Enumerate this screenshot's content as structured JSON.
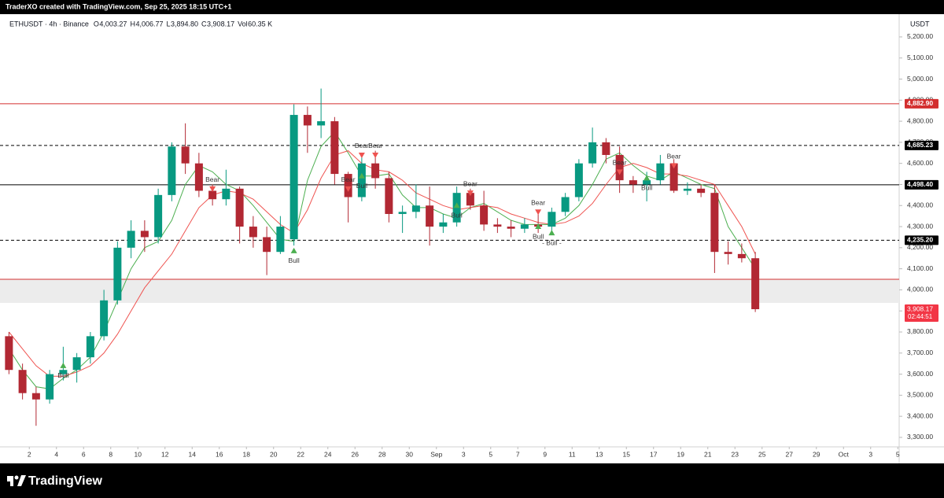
{
  "header": {
    "credit": "TraderXO created with TradingView.com, Sep 25, 2025 18:15 UTC+1",
    "brand": "TradingView"
  },
  "chart_data": {
    "type": "candlestick",
    "symbol": "ETHUSDT · 4h · Binance",
    "ohlc_legend": [
      {
        "key": "O",
        "value": "4,003.27"
      },
      {
        "key": "H",
        "value": "4,006.77"
      },
      {
        "key": "L",
        "value": "3,894.80"
      },
      {
        "key": "C",
        "value": "3,908.17"
      },
      {
        "key": "Vol",
        "value": "60.35 K"
      }
    ],
    "currency": "USDT",
    "x": [
      "Aug 1",
      "Aug 2",
      "Aug 3",
      "Aug 4",
      "Aug 5",
      "Aug 6",
      "Aug 7",
      "Aug 8",
      "Aug 9",
      "Aug 10",
      "Aug 11",
      "Aug 12",
      "Aug 13",
      "Aug 14",
      "Aug 15",
      "Aug 16",
      "Aug 17",
      "Aug 18",
      "Aug 19",
      "Aug 20",
      "Aug 21",
      "Aug 22",
      "Aug 23",
      "Aug 24",
      "Aug 25",
      "Aug 26",
      "Aug 27",
      "Aug 28",
      "Aug 29",
      "Aug 30",
      "Aug 31",
      "Sep 1",
      "Sep 2",
      "Sep 3",
      "Sep 4",
      "Sep 5",
      "Sep 6",
      "Sep 7",
      "Sep 8",
      "Sep 9",
      "Sep 10",
      "Sep 11",
      "Sep 12",
      "Sep 13",
      "Sep 14",
      "Sep 15",
      "Sep 16",
      "Sep 17",
      "Sep 18",
      "Sep 19",
      "Sep 20",
      "Sep 21",
      "Sep 22",
      "Sep 23",
      "Sep 24",
      "Sep 25"
    ],
    "open": [
      3780,
      3620,
      3510,
      3480,
      3600,
      3620,
      3680,
      3780,
      3950,
      4200,
      4280,
      4250,
      4450,
      4680,
      4600,
      4470,
      4430,
      4480,
      4300,
      4250,
      4180,
      4240,
      4830,
      4780,
      4800,
      4550,
      4440,
      4600,
      4530,
      4360,
      4370,
      4400,
      4300,
      4320,
      4460,
      4400,
      4310,
      4300,
      4290,
      4310,
      4300,
      4370,
      4440,
      4600,
      4700,
      4640,
      4520,
      4500,
      4520,
      4600,
      4470,
      4480,
      4460,
      4180,
      4170,
      4150
    ],
    "high": [
      3800,
      3650,
      3540,
      3620,
      3730,
      3700,
      3800,
      4000,
      4230,
      4330,
      4330,
      4480,
      4700,
      4790,
      4650,
      4500,
      4570,
      4490,
      4350,
      4300,
      4350,
      4880,
      4870,
      4955,
      4820,
      4560,
      4640,
      4660,
      4560,
      4400,
      4500,
      4490,
      4360,
      4490,
      4480,
      4470,
      4340,
      4330,
      4340,
      4380,
      4390,
      4460,
      4620,
      4770,
      4720,
      4680,
      4540,
      4560,
      4640,
      4620,
      4510,
      4500,
      4500,
      4230,
      4220,
      4180
    ],
    "low": [
      3600,
      3480,
      3355,
      3460,
      3570,
      3560,
      3650,
      3760,
      3930,
      4150,
      4180,
      4220,
      4420,
      4550,
      4440,
      4400,
      4400,
      4220,
      4200,
      4070,
      4170,
      4210,
      4650,
      4720,
      4500,
      4320,
      4420,
      4480,
      4320,
      4270,
      4340,
      4210,
      4270,
      4300,
      4380,
      4280,
      4270,
      4250,
      4270,
      4270,
      4270,
      4350,
      4420,
      4580,
      4600,
      4460,
      4460,
      4420,
      4500,
      4460,
      4450,
      4440,
      4080,
      4120,
      4130,
      3894.8
    ],
    "close": [
      3620,
      3510,
      3480,
      3600,
      3620,
      3680,
      3780,
      3950,
      4200,
      4280,
      4250,
      4450,
      4680,
      4600,
      4470,
      4430,
      4480,
      4300,
      4250,
      4180,
      4300,
      4830,
      4780,
      4800,
      4550,
      4440,
      4600,
      4530,
      4360,
      4370,
      4400,
      4300,
      4320,
      4460,
      4400,
      4310,
      4300,
      4290,
      4310,
      4300,
      4370,
      4440,
      4600,
      4700,
      4640,
      4520,
      4500,
      4520,
      4600,
      4470,
      4480,
      4460,
      4180,
      4170,
      4150,
      3908.17
    ],
    "up_color": "#089981",
    "down_color": "#b22833",
    "overlays": [
      {
        "color": "#4caf50",
        "values": [
          3720,
          3620,
          3540,
          3530,
          3580,
          3620,
          3680,
          3800,
          3950,
          4100,
          4200,
          4230,
          4330,
          4500,
          4590,
          4560,
          4500,
          4470,
          4400,
          4320,
          4240,
          4230,
          4520,
          4680,
          4750,
          4650,
          4540,
          4540,
          4550,
          4450,
          4390,
          4390,
          4360,
          4340,
          4390,
          4410,
          4370,
          4330,
          4310,
          4310,
          4310,
          4340,
          4400,
          4500,
          4620,
          4650,
          4590,
          4540,
          4520,
          4560,
          4530,
          4500,
          4480,
          4300,
          4200,
          4100
        ]
      },
      {
        "color": "#ef5350",
        "values": [
          3800,
          3720,
          3640,
          3590,
          3590,
          3610,
          3640,
          3700,
          3790,
          3900,
          4010,
          4090,
          4170,
          4280,
          4390,
          4450,
          4470,
          4460,
          4430,
          4370,
          4310,
          4270,
          4380,
          4530,
          4640,
          4660,
          4600,
          4570,
          4560,
          4520,
          4460,
          4430,
          4400,
          4380,
          4390,
          4400,
          4390,
          4360,
          4340,
          4320,
          4310,
          4320,
          4350,
          4410,
          4500,
          4580,
          4600,
          4580,
          4550,
          4550,
          4540,
          4520,
          4500,
          4400,
          4300,
          4170
        ]
      }
    ],
    "signals": [
      {
        "label": "Bull",
        "x": "Aug 5",
        "price": 3640,
        "color": "#4caf50"
      },
      {
        "label": "Bear",
        "x": "Aug 16",
        "price": 4480,
        "color": "#ef5350"
      },
      {
        "label": "Bull",
        "x": "Aug 22",
        "price": 4185,
        "color": "#4caf50"
      },
      {
        "label": "Bear",
        "x": "Aug 26",
        "price": 4480,
        "color": "#ef5350"
      },
      {
        "label": "Bear",
        "x": "Aug 27",
        "price": 4640,
        "color": "#ef5350"
      },
      {
        "label": "Bull",
        "x": "Aug 27",
        "price": 4540,
        "color": "#4caf50"
      },
      {
        "label": "Bear",
        "x": "Aug 28",
        "price": 4640,
        "color": "#ef5350"
      },
      {
        "label": "Bull",
        "x": "Sep 3",
        "price": 4400,
        "color": "#4caf50"
      },
      {
        "label": "Bear",
        "x": "Sep 4",
        "price": 4460,
        "color": "#ef5350"
      },
      {
        "label": "Bear",
        "x": "Sep 9",
        "price": 4370,
        "color": "#ef5350"
      },
      {
        "label": "Bull",
        "x": "Sep 9",
        "price": 4300,
        "color": "#4caf50"
      },
      {
        "label": "- Bull -",
        "x": "Sep 10",
        "price": 4270,
        "color": "#4caf50"
      },
      {
        "label": "Bear",
        "x": "Sep 15",
        "price": 4560,
        "color": "#ef5350"
      },
      {
        "label": "Bull",
        "x": "Sep 17",
        "price": 4530,
        "color": "#4caf50"
      },
      {
        "label": "Bear",
        "x": "Sep 19",
        "price": 4590,
        "color": "#ef5350"
      }
    ],
    "levels": [
      {
        "value": 4882.9,
        "label": "4,882.90",
        "color": "#d32f2f",
        "dashed": false
      },
      {
        "value": 4685.23,
        "label": "4,685.23",
        "color": "#000000",
        "dashed": true
      },
      {
        "value": 4498.4,
        "label": "4,498.40",
        "color": "#000000",
        "dashed": false
      },
      {
        "value": 4235.2,
        "label": "4,235.20",
        "color": "#000000",
        "dashed": true
      },
      {
        "value": 4050,
        "color": "#d32f2f",
        "dashed": false
      }
    ],
    "zone": {
      "range": [
        3938,
        4050
      ],
      "color": "#ececec"
    },
    "last_price": {
      "value": 3908.17,
      "label": "3,908.17",
      "countdown": "02:44:51",
      "color": "#f23645"
    },
    "ylim": [
      3255,
      5308
    ],
    "yticks": [
      {
        "value": 3300,
        "label": "3,300.00"
      },
      {
        "value": 3400,
        "label": "3,400.00"
      },
      {
        "value": 3500,
        "label": "3,500.00"
      },
      {
        "value": 3600,
        "label": "3,600.00"
      },
      {
        "value": 3700,
        "label": "3,700.00"
      },
      {
        "value": 3800,
        "label": "3,800.00"
      },
      {
        "value": 3900,
        "label": "3,900.00"
      },
      {
        "value": 4000,
        "label": "4,000.00"
      },
      {
        "value": 4100,
        "label": "4,100.00"
      },
      {
        "value": 4200,
        "label": "4,200.00"
      },
      {
        "value": 4300,
        "label": "4,300.00"
      },
      {
        "value": 4400,
        "label": "4,400.00"
      },
      {
        "value": 4500,
        "label": "4,500.00"
      },
      {
        "value": 4600,
        "label": "4,600.00"
      },
      {
        "value": 4700,
        "label": "4,700.00"
      },
      {
        "value": 4800,
        "label": "4,800.00"
      },
      {
        "value": 4900,
        "label": "4,900.00"
      },
      {
        "value": 5000,
        "label": "5,000.00"
      },
      {
        "value": 5100,
        "label": "5,100.00"
      },
      {
        "value": 5200,
        "label": "5,200.00"
      }
    ],
    "xticks": [
      {
        "value": "Aug 2",
        "label": "2"
      },
      {
        "value": "Aug 4",
        "label": "4"
      },
      {
        "value": "Aug 6",
        "label": "6"
      },
      {
        "value": "Aug 8",
        "label": "8"
      },
      {
        "value": "Aug 10",
        "label": "10"
      },
      {
        "value": "Aug 12",
        "label": "12"
      },
      {
        "value": "Aug 14",
        "label": "14"
      },
      {
        "value": "Aug 16",
        "label": "16"
      },
      {
        "value": "Aug 18",
        "label": "18"
      },
      {
        "value": "Aug 20",
        "label": "20"
      },
      {
        "value": "Aug 22",
        "label": "22"
      },
      {
        "value": "Aug 24",
        "label": "24"
      },
      {
        "value": "Aug 26",
        "label": "26"
      },
      {
        "value": "Aug 28",
        "label": "28"
      },
      {
        "value": "Aug 30",
        "label": "30"
      },
      {
        "value": "Sep 1",
        "label": "Sep"
      },
      {
        "value": "Sep 3",
        "label": "3"
      },
      {
        "value": "Sep 5",
        "label": "5"
      },
      {
        "value": "Sep 7",
        "label": "7"
      },
      {
        "value": "Sep 9",
        "label": "9"
      },
      {
        "value": "Sep 11",
        "label": "11"
      },
      {
        "value": "Sep 13",
        "label": "13"
      },
      {
        "value": "Sep 15",
        "label": "15"
      },
      {
        "value": "Sep 17",
        "label": "17"
      },
      {
        "value": "Sep 19",
        "label": "19"
      },
      {
        "value": "Sep 21",
        "label": "21"
      },
      {
        "value": "Sep 23",
        "label": "23"
      },
      {
        "value": "Sep 25",
        "label": "25"
      },
      {
        "value": "Sep 27",
        "label": "27"
      },
      {
        "value": "Sep 29",
        "label": "29"
      },
      {
        "value": "Oct 1",
        "label": "Oct"
      },
      {
        "value": "Oct 3",
        "label": "3"
      },
      {
        "value": "Oct 5",
        "label": "5"
      }
    ]
  }
}
